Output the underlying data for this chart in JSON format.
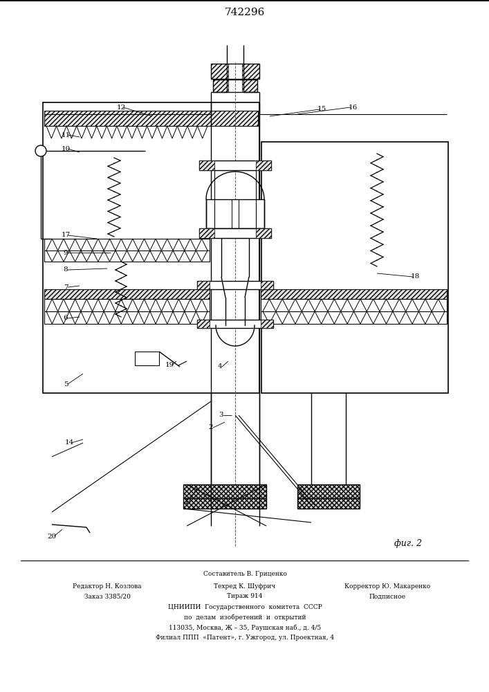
{
  "title": "742296",
  "fig_label": "фиг. 2",
  "footer_line0": "Составитель В. Гриценко",
  "footer_line1a": "Редактор Н. Козлова",
  "footer_line1b": "Техред К. Шуфрич",
  "footer_line1c": "Корректор Ю. Макаренко",
  "footer_line2a": "Заказ 3385/20",
  "footer_line2b": "Тираж 914",
  "footer_line2c": "Подписное",
  "footer_line3": "ЦНИИПИ  Государственного  комитета  СССР",
  "footer_line4": "по  делам  изобретений  и  открытий",
  "footer_line5": "113035, Москва, Ж – 35, Раушская наб., д. 4/5",
  "footer_line6": "Филиал ППП  «Патент», г. Ужгород, ул. Проектная, 4",
  "bg_color": "#ffffff"
}
